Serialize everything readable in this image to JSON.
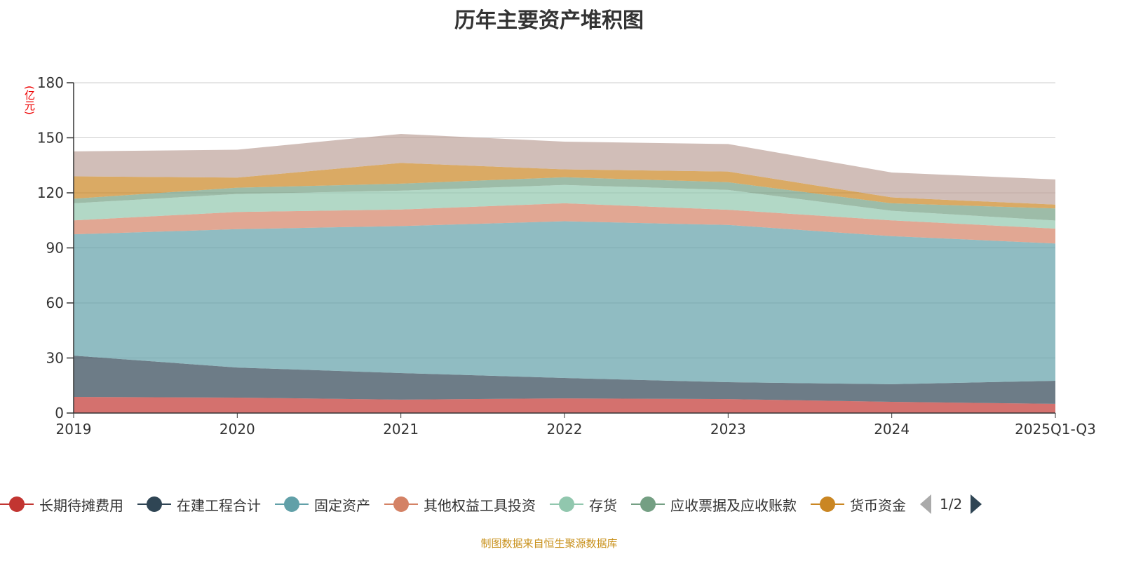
{
  "title": "历年主要资产堆积图",
  "unit": "(亿元)",
  "source": "制图数据来自恒生聚源数据库",
  "legend_page": "1/2",
  "chart_data": {
    "type": "area",
    "stacked": true,
    "title": "历年主要资产堆积图",
    "ylabel": "(亿元)",
    "ylim": [
      0,
      180
    ],
    "yticks": [
      0,
      30,
      60,
      90,
      120,
      150,
      180
    ],
    "grid": true,
    "legend_placement": "bottom",
    "categories": [
      "2019",
      "2020",
      "2021",
      "2022",
      "2023",
      "2024",
      "2025Q1-Q3"
    ],
    "series": [
      {
        "name": "长期待摊费用",
        "color": "#c23531",
        "values": [
          8.8,
          8.4,
          7.3,
          8.0,
          7.6,
          6.1,
          5.0
        ]
      },
      {
        "name": "在建工程合计",
        "color": "#2f4554",
        "values": [
          22.5,
          16.4,
          14.5,
          11.1,
          9.2,
          9.6,
          12.6
        ]
      },
      {
        "name": "固定资产",
        "color": "#61a0a8",
        "values": [
          66.1,
          75.4,
          80.1,
          85.4,
          85.7,
          80.7,
          74.8
        ]
      },
      {
        "name": "其他权益工具投资",
        "color": "#d48265",
        "values": [
          7.6,
          9.4,
          9.0,
          9.8,
          8.3,
          8.6,
          8.1
        ]
      },
      {
        "name": "存货",
        "color": "#91c7ae",
        "values": [
          9.3,
          9.8,
          10.3,
          10.0,
          10.8,
          5.2,
          4.4
        ]
      },
      {
        "name": "应收票据及应收账款",
        "color": "#749f83",
        "values": [
          2.5,
          3.4,
          3.8,
          4.2,
          4.2,
          4.1,
          6.6
        ]
      },
      {
        "name": "货币资金",
        "color": "#ca8622",
        "values": [
          12.2,
          5.5,
          11.3,
          4.3,
          5.8,
          3.2,
          2.1
        ]
      },
      {
        "color": "#bda29a",
        "values": [
          13.6,
          15.2,
          15.8,
          15.1,
          15.0,
          13.6,
          13.7
        ]
      }
    ]
  }
}
